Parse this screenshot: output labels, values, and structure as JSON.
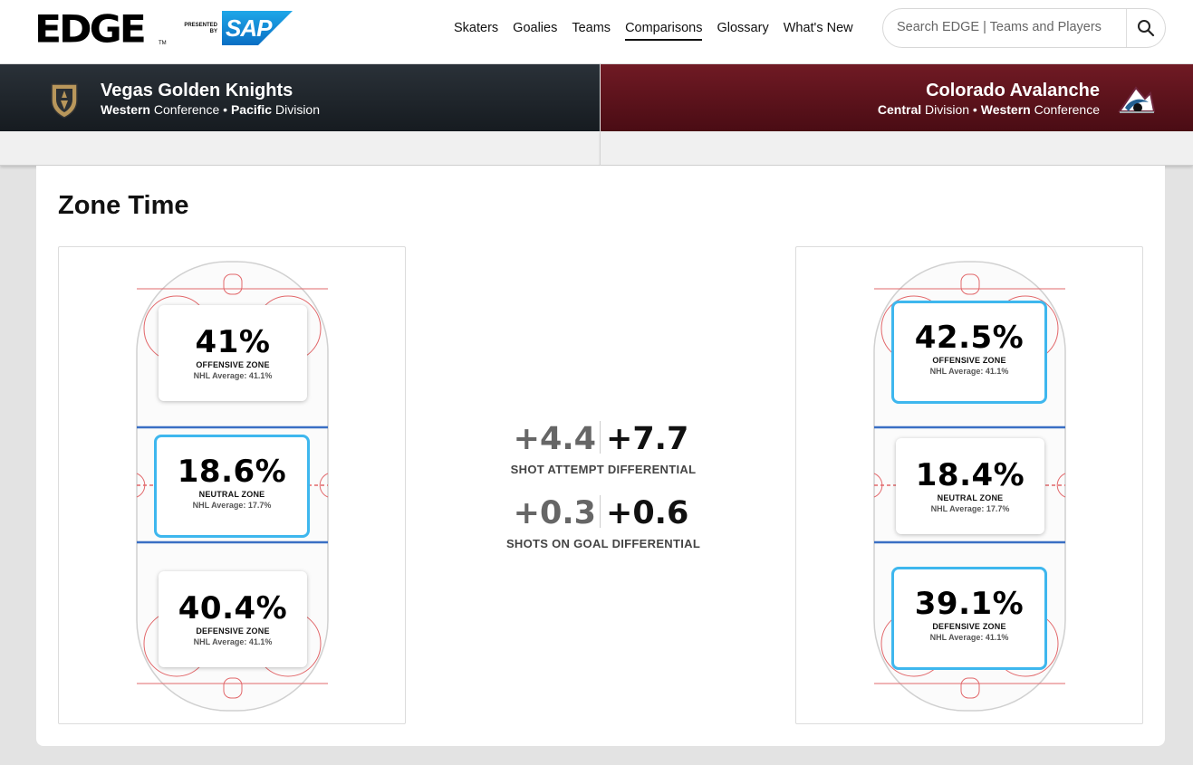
{
  "header": {
    "logo_text": "EDGE",
    "logo_tm": "TM",
    "presented_by": "PRESENTED BY",
    "sponsor": "SAP",
    "nav": [
      "Skaters",
      "Goalies",
      "Teams",
      "Comparisons",
      "Glossary",
      "What's New"
    ],
    "active_nav": "Comparisons",
    "search_placeholder": "Search EDGE | Teams and Players"
  },
  "teams": {
    "left": {
      "name": "Vegas Golden Knights",
      "conference_bold": "Western",
      "conference_word": "Conference",
      "division_bold": "Pacific",
      "division_word": "Division",
      "color": "#1c2329"
    },
    "right": {
      "name": "Colorado Avalanche",
      "division_bold": "Central",
      "division_word": "Division",
      "conference_bold": "Western",
      "conference_word": "Conference",
      "color": "#6f1a25"
    }
  },
  "section_title": "Zone Time",
  "zones": {
    "left": {
      "offensive": {
        "pct": "41%",
        "label": "OFFENSIVE ZONE",
        "avg": "NHL Average: 41.1%"
      },
      "neutral": {
        "pct": "18.6%",
        "label": "NEUTRAL ZONE",
        "avg": "NHL Average: 17.7%"
      },
      "defensive": {
        "pct": "40.4%",
        "label": "DEFENSIVE ZONE",
        "avg": "NHL Average: 41.1%"
      }
    },
    "right": {
      "offensive": {
        "pct": "42.5%",
        "label": "OFFENSIVE ZONE",
        "avg": "NHL Average: 41.1%"
      },
      "neutral": {
        "pct": "18.4%",
        "label": "NEUTRAL ZONE",
        "avg": "NHL Average: 17.7%"
      },
      "defensive": {
        "pct": "39.1%",
        "label": "DEFENSIVE ZONE",
        "avg": "NHL Average: 41.1%"
      }
    }
  },
  "differentials": [
    {
      "left": "+4.4",
      "right": "+7.7",
      "label": "SHOT ATTEMPT DIFFERENTIAL"
    },
    {
      "left": "+0.3",
      "right": "+0.6",
      "label": "SHOTS ON GOAL DIFFERENTIAL"
    }
  ],
  "colors": {
    "highlight": "#3eb7ee",
    "rink_red": "#e2686b",
    "rink_blue": "#3a6fc4"
  },
  "icons": {
    "search": "search-icon",
    "left_logo": "golden-knights-logo",
    "right_logo": "avalanche-logo"
  }
}
